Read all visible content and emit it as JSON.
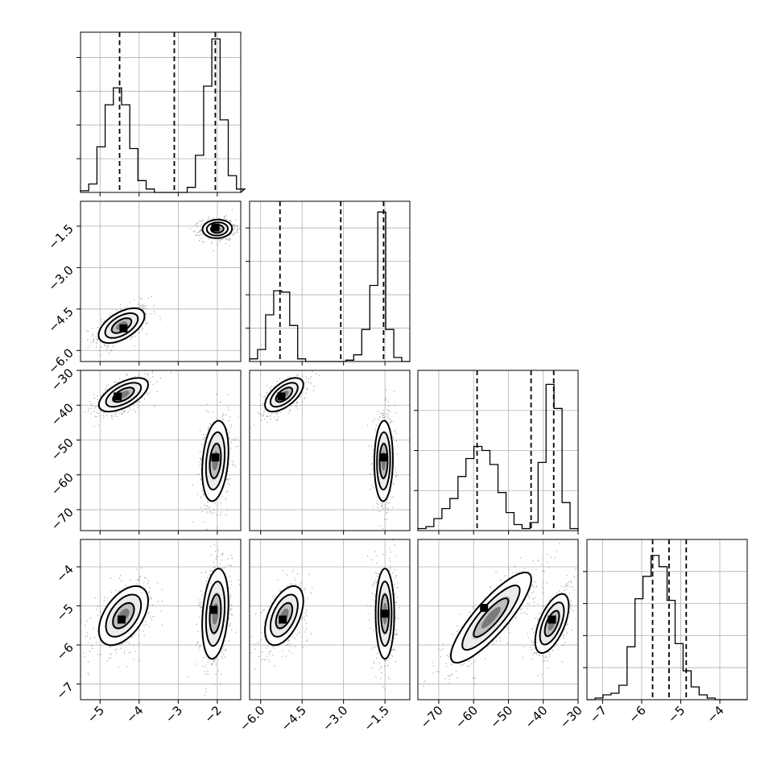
{
  "chart_data": {
    "type": "corner",
    "grid": true,
    "parameters": [
      {
        "xlim": [
          -5.5,
          -1.4
        ],
        "ticks": [
          -5,
          -4,
          -3,
          -2
        ],
        "tick_labels": [
          "−5",
          "−4",
          "−3",
          "−2"
        ]
      },
      {
        "xlim": [
          -6.4,
          -0.6
        ],
        "ticks": [
          -6.0,
          -4.5,
          -3.0,
          -1.5
        ],
        "tick_labels": [
          "−6.0",
          "−4.5",
          "−3.0",
          "−1.5"
        ]
      },
      {
        "xlim": [
          -76,
          -30
        ],
        "ticks": [
          -70,
          -60,
          -50,
          -40,
          -30
        ],
        "tick_labels": [
          "−70",
          "−60",
          "−50",
          "−40",
          "−30"
        ]
      },
      {
        "xlim": [
          -7.4,
          -3.3
        ],
        "ticks": [
          -7,
          -6,
          -5,
          -4
        ],
        "tick_labels": [
          "−7",
          "−6",
          "−5",
          "−4"
        ]
      }
    ],
    "y_tick_labels": {
      "1": [
        "−1.5",
        "−3.0",
        "−4.5",
        "−6.0"
      ],
      "2": [
        "−30",
        "−40",
        "−50",
        "−60",
        "−70"
      ],
      "3": [
        "−4",
        "−5",
        "−6",
        "−7"
      ]
    },
    "histograms": [
      {
        "edges_start": -5.5,
        "bin_width": 0.21,
        "counts": [
          1,
          5,
          27,
          52,
          62,
          52,
          26,
          7,
          2,
          0,
          0,
          0,
          0,
          3,
          22,
          63,
          91,
          43,
          10,
          2
        ],
        "ymax": 95,
        "quantiles": [
          -4.5,
          -3.1,
          -2.05
        ]
      },
      {
        "edges_start": -6.4,
        "bin_width": 0.29,
        "counts": [
          2,
          9,
          35,
          53,
          52,
          27,
          2,
          0,
          0,
          0,
          0,
          0,
          1,
          5,
          24,
          57,
          112,
          24,
          3,
          0
        ],
        "ymax": 120,
        "quantiles": [
          -5.3,
          -3.1,
          -1.55
        ]
      },
      {
        "edges_start": -76,
        "bin_width": 2.3,
        "counts": [
          1,
          2,
          6,
          11,
          16,
          27,
          36,
          42,
          40,
          33,
          19,
          9,
          3,
          1,
          4,
          34,
          73,
          61,
          14,
          1
        ],
        "ymax": 80,
        "quantiles": [
          -59,
          -43.5,
          -37
        ]
      },
      {
        "edges_start": -7.4,
        "bin_width": 0.205,
        "counts": [
          0,
          1,
          3,
          4,
          9,
          33,
          63,
          77,
          90,
          83,
          62,
          35,
          18,
          8,
          3,
          1,
          0,
          0,
          0,
          0
        ],
        "ymax": 100,
        "quantiles": [
          -5.72,
          -5.3,
          -4.86
        ]
      }
    ],
    "joint_modes": [
      {
        "row": 1,
        "col": 0,
        "modes": [
          {
            "cx": -4.45,
            "cy": -5.1,
            "sx": 0.28,
            "sy": 0.3,
            "rho": 0.55,
            "n": 500,
            "peak": [
              -4.4,
              -5.2
            ]
          },
          {
            "cx": -2.0,
            "cy": -1.6,
            "sx": 0.18,
            "sy": 0.16,
            "rho": 0.05,
            "n": 500,
            "peak": [
              -2.05,
              -1.55
            ]
          }
        ]
      },
      {
        "row": 2,
        "col": 0,
        "modes": [
          {
            "cx": -4.4,
            "cy": -37,
            "sx": 0.3,
            "sy": 2.3,
            "rho": 0.6,
            "n": 500,
            "peak": [
              -4.55,
              -37.5
            ]
          },
          {
            "cx": -2.05,
            "cy": -56,
            "sx": 0.16,
            "sy": 5.5,
            "rho": 0.25,
            "n": 500,
            "peak": [
              -2.05,
              -55
            ]
          }
        ]
      },
      {
        "row": 2,
        "col": 1,
        "modes": [
          {
            "cx": -5.15,
            "cy": -37,
            "sx": 0.33,
            "sy": 2.3,
            "rho": 0.6,
            "n": 500,
            "peak": [
              -5.25,
              -37.5
            ]
          },
          {
            "cx": -1.55,
            "cy": -56,
            "sx": 0.16,
            "sy": 5.5,
            "rho": 0.05,
            "n": 500,
            "peak": [
              -1.55,
              -55
            ]
          }
        ]
      },
      {
        "row": 3,
        "col": 0,
        "modes": [
          {
            "cx": -4.4,
            "cy": -5.25,
            "sx": 0.3,
            "sy": 0.36,
            "rho": 0.5,
            "n": 500,
            "peak": [
              -4.45,
              -5.35
            ]
          },
          {
            "cx": -2.05,
            "cy": -5.2,
            "sx": 0.16,
            "sy": 0.55,
            "rho": 0.25,
            "n": 500,
            "peak": [
              -2.1,
              -5.1
            ]
          }
        ]
      },
      {
        "row": 3,
        "col": 1,
        "modes": [
          {
            "cx": -5.15,
            "cy": -5.25,
            "sx": 0.33,
            "sy": 0.36,
            "rho": 0.5,
            "n": 500,
            "peak": [
              -5.2,
              -5.35
            ]
          },
          {
            "cx": -1.5,
            "cy": -5.2,
            "sx": 0.16,
            "sy": 0.55,
            "rho": 0.0,
            "n": 500,
            "peak": [
              -1.5,
              -5.2
            ]
          }
        ]
      },
      {
        "row": 3,
        "col": 2,
        "modes": [
          {
            "cx": -55,
            "cy": -5.3,
            "sx": 5.5,
            "sy": 0.55,
            "rho": 0.85,
            "n": 500,
            "peak": [
              -57,
              -5.05
            ]
          },
          {
            "cx": -37.5,
            "cy": -5.45,
            "sx": 2.3,
            "sy": 0.36,
            "rho": 0.6,
            "n": 500,
            "peak": [
              -37.5,
              -5.35
            ]
          }
        ]
      }
    ]
  }
}
